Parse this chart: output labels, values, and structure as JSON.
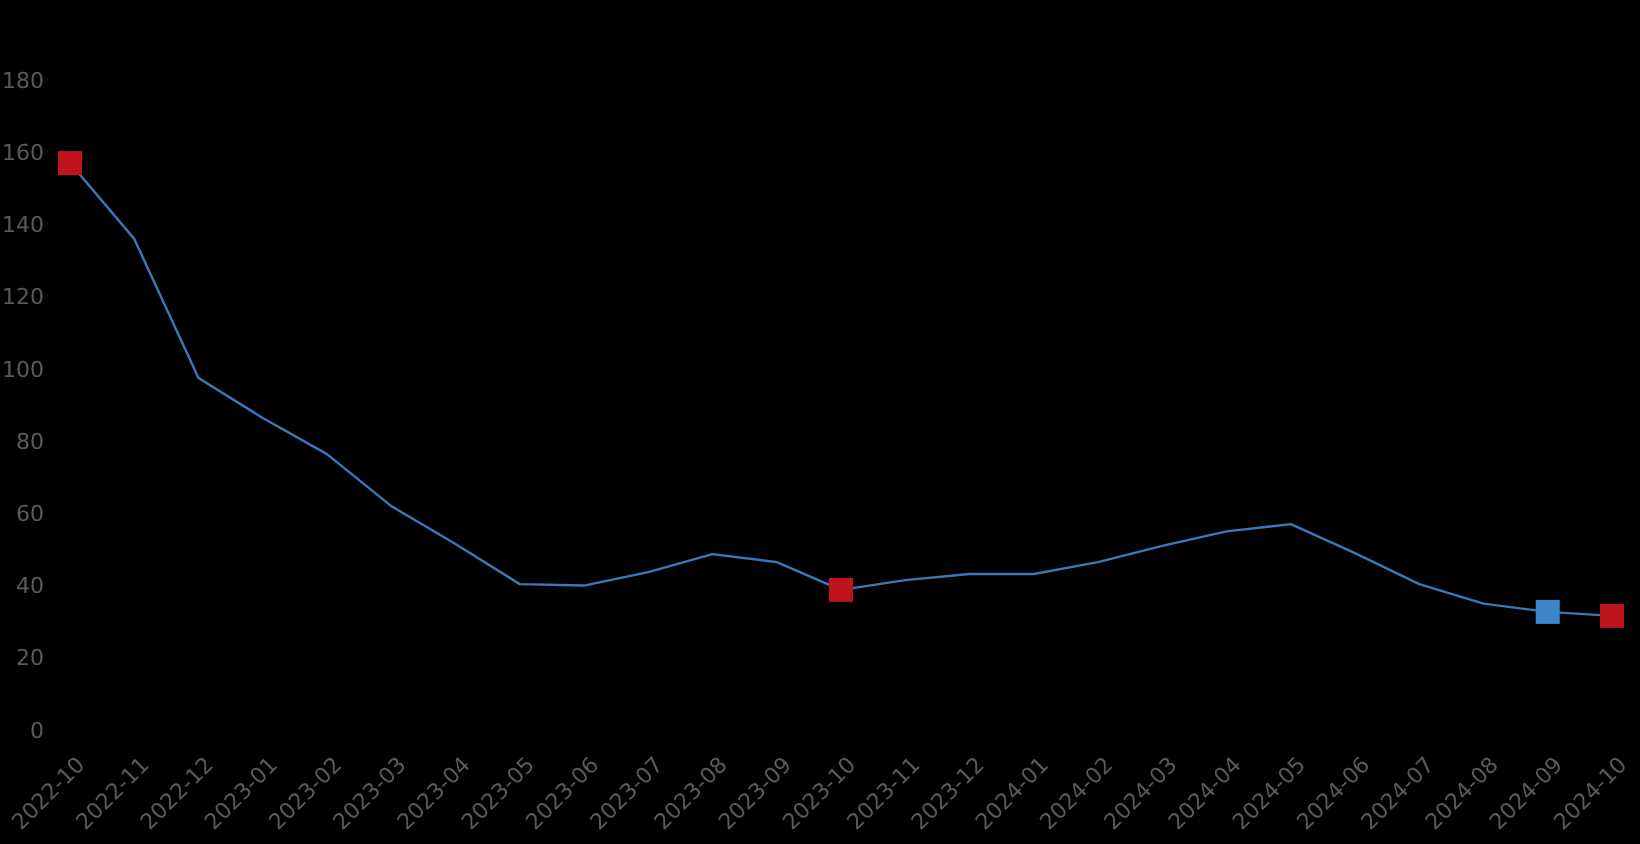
{
  "chart_data": {
    "type": "line",
    "categories": [
      "2022-10",
      "2022-11",
      "2022-12",
      "2023-01",
      "2023-02",
      "2023-03",
      "2023-04",
      "2023-05",
      "2023-06",
      "2023-07",
      "2023-08",
      "2023-09",
      "2023-10",
      "2023-11",
      "2023-12",
      "2024-01",
      "2024-02",
      "2024-03",
      "2024-04",
      "2024-05",
      "2024-06",
      "2024-07",
      "2024-08",
      "2024-09",
      "2024-10"
    ],
    "series": [
      {
        "color": "#3a78b8",
        "marker": "none",
        "values": [
          157,
          136,
          97.5,
          86.4,
          76.4,
          62,
          51.5,
          40.4,
          40,
          43.7,
          48.7,
          46.5,
          38.8,
          41.5,
          43.2,
          43.2,
          46.5,
          51,
          55,
          57,
          49,
          40.4,
          35,
          32.7,
          31.6
        ]
      },
      {
        "type": "scatter",
        "color": "#c0141c",
        "marker": "square",
        "values": [
          157,
          null,
          null,
          null,
          null,
          null,
          null,
          null,
          null,
          null,
          null,
          null,
          38.8,
          null,
          null,
          null,
          null,
          null,
          null,
          null,
          null,
          null,
          null,
          null,
          31.6
        ]
      },
      {
        "type": "scatter",
        "color": "#3a86c8",
        "marker": "square",
        "values": [
          null,
          null,
          null,
          null,
          null,
          null,
          null,
          null,
          null,
          null,
          null,
          null,
          null,
          null,
          null,
          null,
          null,
          null,
          null,
          null,
          null,
          null,
          null,
          32.7,
          null
        ]
      }
    ],
    "ylim": [
      0,
      180
    ],
    "yticks": [
      0,
      20,
      40,
      60,
      80,
      100,
      120,
      140,
      160,
      180
    ]
  }
}
